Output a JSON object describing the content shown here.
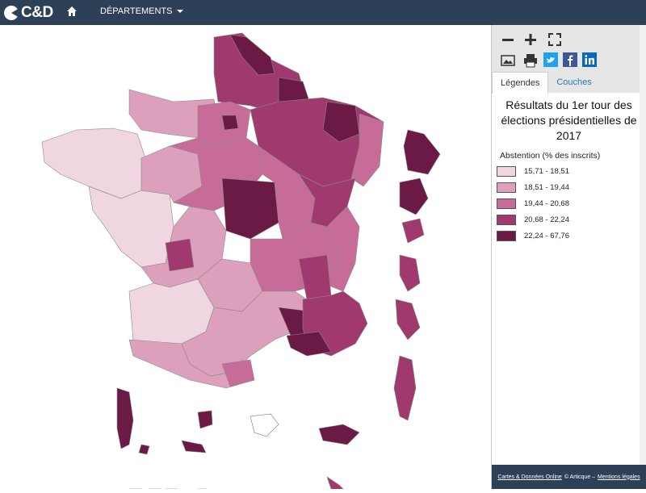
{
  "header": {
    "logo_text": "C&D",
    "home_icon": "home-icon",
    "menu_label": "DÉPARTEMENTS"
  },
  "toolbar": {
    "icons": [
      "minus-icon",
      "plus-icon",
      "fullscreen-icon",
      "image-icon",
      "print-icon",
      "twitter-icon",
      "facebook-icon",
      "linkedin-icon"
    ]
  },
  "tabs": {
    "legend": "Légendes",
    "layers": "Couches"
  },
  "legend": {
    "title": "Résultats du 1er tour des élections présidentielles de 2017",
    "subtitle": "Abstention (% des inscrits)",
    "classes": [
      {
        "label": "15,71 - 18,51",
        "color": "#f0d6e0"
      },
      {
        "label": "18,51 - 19,44",
        "color": "#dc9fbc"
      },
      {
        "label": "19,44 - 20,68",
        "color": "#c76c98"
      },
      {
        "label": "20,68 - 22,24",
        "color": "#a03a6e"
      },
      {
        "label": "22,24 - 67,76",
        "color": "#6b1a45"
      }
    ]
  },
  "footer": {
    "link1": "Cartes & Données Online",
    "middle": "© Articque –",
    "link2": "Mentions légales"
  }
}
